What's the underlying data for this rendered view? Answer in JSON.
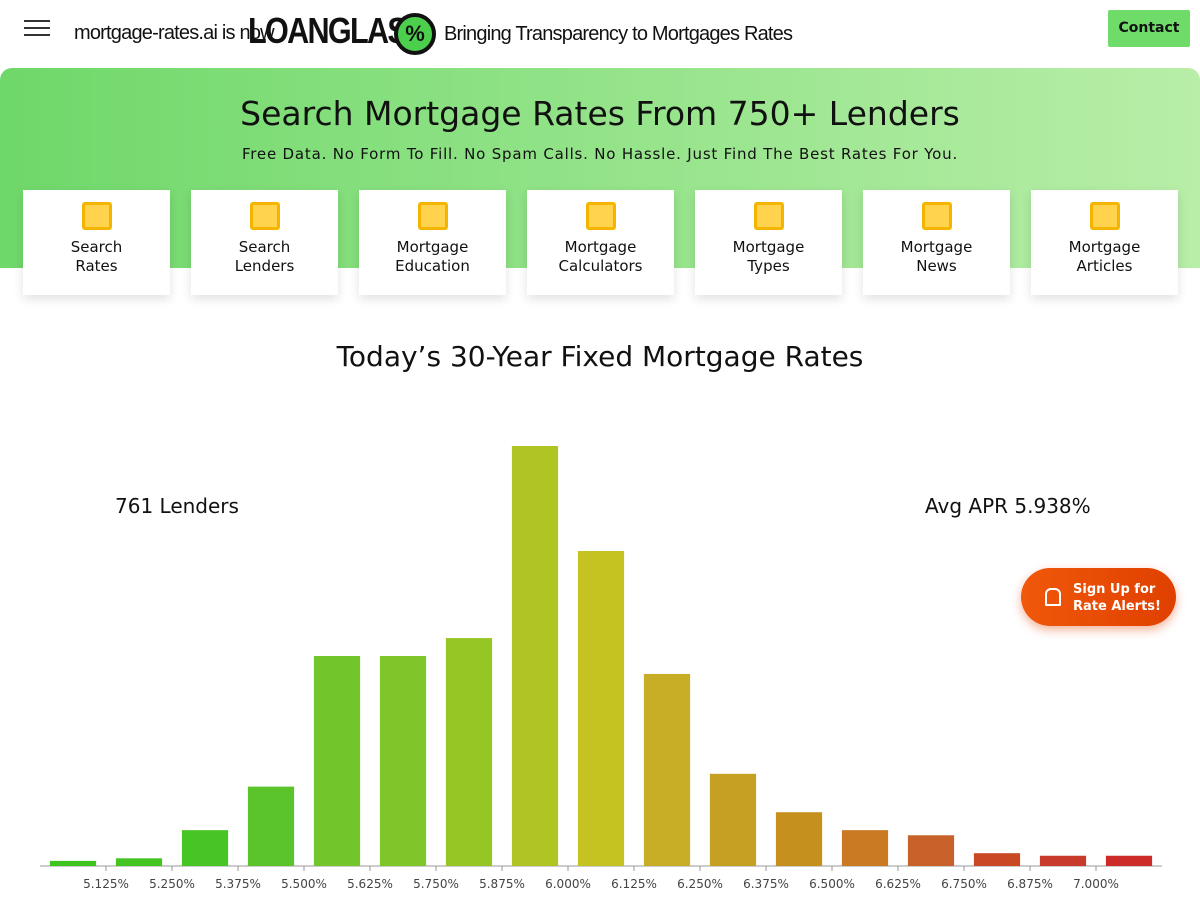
{
  "header": {
    "intro": "mortgage-rates.ai is now",
    "logo": "LOANGLASS",
    "logo_mark": "%",
    "tagline": "Bringing Transparency to Mortgages Rates",
    "contact": "Contact"
  },
  "hero": {
    "title": "Search Mortgage Rates From 750+ Lenders",
    "subtitle": "Free Data. No Form To Fill. No Spam Calls. No Hassle. Just Find The Best Rates For You.",
    "cards": [
      [
        "Search",
        "Rates"
      ],
      [
        "Search",
        "Lenders"
      ],
      [
        "Mortgage",
        "Education"
      ],
      [
        "Mortgage",
        "Calculators"
      ],
      [
        "Mortgage",
        "Types"
      ],
      [
        "Mortgage",
        "News"
      ],
      [
        "Mortgage",
        "Articles"
      ]
    ]
  },
  "alert": [
    "Sign Up for",
    "Rate Alerts!"
  ],
  "chart_data": {
    "type": "histogram",
    "title": "Today’s 30-Year Fixed Mortgage Rates",
    "annotations": [
      "761 Lenders",
      "Avg APR 5.938%"
    ],
    "bins": [
      5.0,
      5.125,
      5.25,
      5.375,
      5.5,
      5.625,
      5.75,
      5.875,
      6.0,
      6.125,
      6.25,
      6.375,
      6.5,
      6.625,
      6.75,
      6.875,
      7.0,
      7.125
    ],
    "values": [
      2,
      3,
      14,
      31,
      82,
      82,
      89,
      164,
      123,
      75,
      36,
      21,
      14,
      12,
      5,
      4,
      4
    ],
    "colors": [
      "#3dc41f",
      "#44c420",
      "#47c524",
      "#5bc42a",
      "#72c62b",
      "#7fc62a",
      "#96c526",
      "#b0c524",
      "#c5c321",
      "#c8ad26",
      "#c5a023",
      "#c6901f",
      "#c97a22",
      "#c8612a",
      "#c94924",
      "#c83a29",
      "#cd2a2a"
    ],
    "xlim": [
      5.0,
      7.125
    ],
    "xticks": [
      {
        "value": 5.125,
        "label": "5.125%"
      },
      {
        "value": 5.25,
        "label": "5.250%"
      },
      {
        "value": 5.375,
        "label": "5.375%"
      },
      {
        "value": 5.5,
        "label": "5.500%"
      },
      {
        "value": 5.625,
        "label": "5.625%"
      },
      {
        "value": 5.75,
        "label": "5.750%"
      },
      {
        "value": 5.875,
        "label": "5.875%"
      },
      {
        "value": 6.0,
        "label": "6.000%"
      },
      {
        "value": 6.125,
        "label": "6.125%"
      },
      {
        "value": 6.25,
        "label": "6.250%"
      },
      {
        "value": 6.375,
        "label": "6.375%"
      },
      {
        "value": 6.5,
        "label": "6.500%"
      },
      {
        "value": 6.625,
        "label": "6.625%"
      },
      {
        "value": 6.75,
        "label": "6.750%"
      },
      {
        "value": 6.875,
        "label": "6.875%"
      },
      {
        "value": 7.0,
        "label": "7.000%"
      }
    ]
  }
}
